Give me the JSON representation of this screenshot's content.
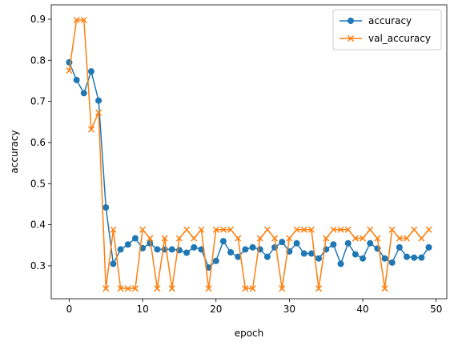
{
  "chart_data": {
    "type": "line",
    "title": "",
    "xlabel": "epoch",
    "ylabel": "accuracy",
    "xlim": [
      -2.45,
      51.45
    ],
    "ylim": [
      0.22,
      0.935
    ],
    "xticks": [
      0,
      10,
      20,
      30,
      40,
      50
    ],
    "yticks": [
      0.3,
      0.4,
      0.5,
      0.6,
      0.7,
      0.8,
      0.9
    ],
    "xtick_labels": [
      "0",
      "10",
      "20",
      "30",
      "40",
      "50"
    ],
    "ytick_labels": [
      "0.3",
      "0.4",
      "0.5",
      "0.6",
      "0.7",
      "0.8",
      "0.9"
    ],
    "grid": false,
    "legend_position": "top-right",
    "x": [
      0,
      1,
      2,
      3,
      4,
      5,
      6,
      7,
      8,
      9,
      10,
      11,
      12,
      13,
      14,
      15,
      16,
      17,
      18,
      19,
      20,
      21,
      22,
      23,
      24,
      25,
      26,
      27,
      28,
      29,
      30,
      31,
      32,
      33,
      34,
      35,
      36,
      37,
      38,
      39,
      40,
      41,
      42,
      43,
      44,
      45,
      46,
      47,
      48,
      49
    ],
    "series": [
      {
        "name": "accuracy",
        "marker": "circle",
        "color": "#1f77b4",
        "values": [
          0.795,
          0.752,
          0.72,
          0.773,
          0.702,
          0.442,
          0.305,
          0.34,
          0.352,
          0.367,
          0.343,
          0.355,
          0.34,
          0.34,
          0.34,
          0.338,
          0.332,
          0.345,
          0.34,
          0.296,
          0.312,
          0.36,
          0.333,
          0.322,
          0.34,
          0.345,
          0.34,
          0.322,
          0.345,
          0.358,
          0.335,
          0.355,
          0.33,
          0.33,
          0.318,
          0.34,
          0.352,
          0.305,
          0.355,
          0.328,
          0.318,
          0.355,
          0.342,
          0.318,
          0.308,
          0.345,
          0.322,
          0.32,
          0.32,
          0.345
        ]
      },
      {
        "name": "val_accuracy",
        "marker": "x",
        "color": "#ff7f0e",
        "values": [
          0.775,
          0.898,
          0.898,
          0.632,
          0.673,
          0.245,
          0.388,
          0.245,
          0.245,
          0.245,
          0.388,
          0.367,
          0.245,
          0.367,
          0.245,
          0.367,
          0.388,
          0.367,
          0.388,
          0.245,
          0.388,
          0.388,
          0.388,
          0.367,
          0.245,
          0.245,
          0.367,
          0.388,
          0.367,
          0.245,
          0.367,
          0.388,
          0.388,
          0.388,
          0.245,
          0.367,
          0.388,
          0.388,
          0.388,
          0.367,
          0.367,
          0.388,
          0.367,
          0.245,
          0.388,
          0.367,
          0.367,
          0.388,
          0.367,
          0.388
        ]
      }
    ]
  }
}
